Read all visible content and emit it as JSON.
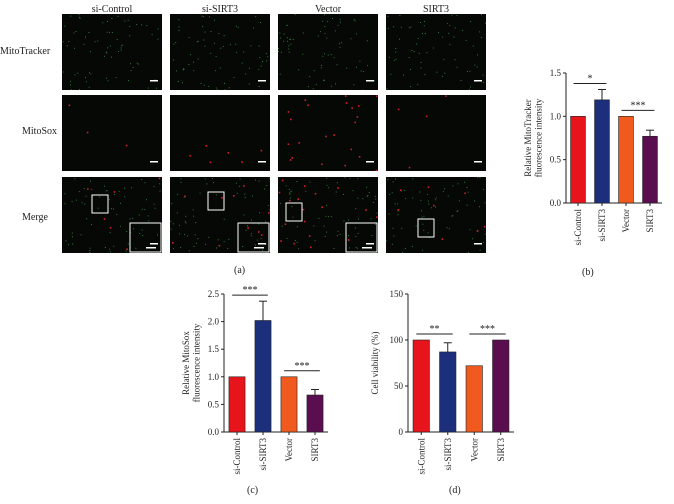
{
  "figure": {
    "columns": [
      "si-Control",
      "si-SIRT3",
      "Vector",
      "SIRT3"
    ],
    "rows": [
      "MitoTracker",
      "MitoSox",
      "Merge"
    ],
    "panel_labels": [
      "(a)",
      "(b)",
      "(c)",
      "(d)"
    ]
  },
  "colors": {
    "si-Control": "#e8141b",
    "si-SIRT3": "#1b2f7d",
    "Vector": "#f05a1e",
    "SIRT3": "#5a0e4f"
  },
  "chart_data": [
    {
      "panel": "(b)",
      "type": "bar",
      "categories": [
        "si-Control",
        "si-SIRT3",
        "Vector",
        "SIRT3"
      ],
      "values": [
        1.0,
        1.19,
        1.0,
        0.77
      ],
      "errors": [
        0,
        0.12,
        0,
        0.07
      ],
      "ylabel": "Relative MitoTracker fluorescence intensity",
      "ylim": [
        0,
        1.5
      ],
      "yticks": [
        "0.0",
        "0.5",
        "1.0",
        "1.5"
      ],
      "significance": [
        {
          "from": 0,
          "to": 1,
          "label": "*"
        },
        {
          "from": 2,
          "to": 3,
          "label": "***"
        }
      ]
    },
    {
      "panel": "(c)",
      "type": "bar",
      "categories": [
        "si-Control",
        "si-SIRT3",
        "Vector",
        "SIRT3"
      ],
      "values": [
        1.0,
        2.02,
        1.0,
        0.67
      ],
      "errors": [
        0,
        0.35,
        0,
        0.1
      ],
      "ylabel": "Relative MitoSox fluorescence intensity",
      "ylim": [
        0,
        2.5
      ],
      "yticks": [
        "0.0",
        "0.5",
        "1.0",
        "1.5",
        "2.0",
        "2.5"
      ],
      "significance": [
        {
          "from": 0,
          "to": 1,
          "label": "***"
        },
        {
          "from": 2,
          "to": 3,
          "label": "***"
        }
      ]
    },
    {
      "panel": "(d)",
      "type": "bar",
      "categories": [
        "si-Control",
        "si-SIRT3",
        "Vector",
        "SIRT3"
      ],
      "values": [
        100,
        87,
        72,
        100
      ],
      "errors": [
        0,
        10,
        0,
        0
      ],
      "ylabel": "Cell viability (%)",
      "ylim": [
        0,
        150
      ],
      "yticks": [
        "0",
        "50",
        "100",
        "150"
      ],
      "significance": [
        {
          "from": 0,
          "to": 1,
          "label": "**"
        },
        {
          "from": 2,
          "to": 3,
          "label": "***"
        }
      ]
    }
  ]
}
